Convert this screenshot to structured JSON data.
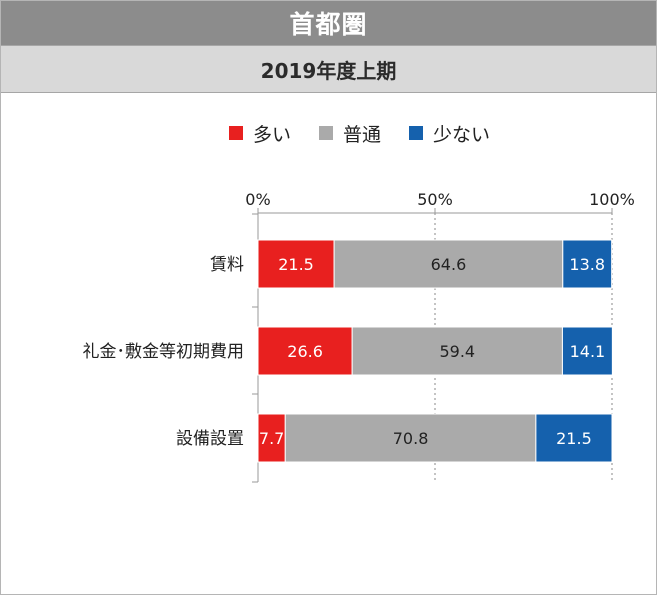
{
  "header": {
    "title": "首都圏",
    "subtitle": "2019年度上期"
  },
  "colors": {
    "many": "#e8201f",
    "normal": "#aaaaaa",
    "few": "#1561ad"
  },
  "chart_data": {
    "type": "bar",
    "orientation": "horizontal",
    "stacked": true,
    "categories": [
      "賃料",
      "礼金･敷金等初期費用",
      "設備設置"
    ],
    "series": [
      {
        "name": "多い",
        "values": [
          21.5,
          26.6,
          7.7
        ]
      },
      {
        "name": "普通",
        "values": [
          64.6,
          59.4,
          70.8
        ]
      },
      {
        "name": "少ない",
        "values": [
          13.8,
          14.1,
          21.5
        ]
      }
    ],
    "xlim": [
      0,
      100
    ],
    "x_ticks": [
      "0%",
      "50%",
      "100%"
    ],
    "legend_position": "top",
    "grid": "vertical dotted at 50% and 100%"
  }
}
